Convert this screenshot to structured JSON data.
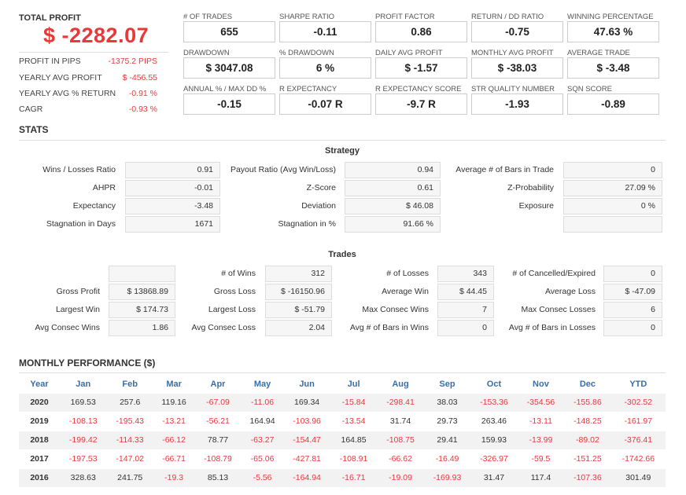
{
  "summary": {
    "total_profit_label": "TOTAL PROFIT",
    "total_profit_value": "$ -2282.07",
    "rows": [
      {
        "label": "PROFIT IN PIPS",
        "value": "-1375.2 PIPS"
      },
      {
        "label": "YEARLY AVG PROFIT",
        "value": "$ -456.55"
      },
      {
        "label": "YEARLY AVG % RETURN",
        "value": "-0.91 %"
      },
      {
        "label": "CAGR",
        "value": "-0.93 %"
      }
    ]
  },
  "metrics": [
    {
      "label": "# OF TRADES",
      "value": "655"
    },
    {
      "label": "SHARPE RATIO",
      "value": "-0.11"
    },
    {
      "label": "PROFIT FACTOR",
      "value": "0.86"
    },
    {
      "label": "RETURN / DD RATIO",
      "value": "-0.75"
    },
    {
      "label": "WINNING PERCENTAGE",
      "value": "47.63 %"
    },
    {
      "label": "DRAWDOWN",
      "value": "$ 3047.08"
    },
    {
      "label": "% DRAWDOWN",
      "value": "6 %"
    },
    {
      "label": "DAILY AVG PROFIT",
      "value": "$ -1.57"
    },
    {
      "label": "MONTHLY AVG PROFIT",
      "value": "$ -38.03"
    },
    {
      "label": "AVERAGE TRADE",
      "value": "$ -3.48"
    },
    {
      "label": "ANNUAL % / MAX DD %",
      "value": "-0.15"
    },
    {
      "label": "R EXPECTANCY",
      "value": "-0.07 R"
    },
    {
      "label": "R EXPECTANCY SCORE",
      "value": "-9.7 R"
    },
    {
      "label": "STR QUALITY NUMBER",
      "value": "-1.93"
    },
    {
      "label": "SQN SCORE",
      "value": "-0.89"
    }
  ],
  "stats": {
    "title": "STATS",
    "strategy_title": "Strategy",
    "strategy_rows": [
      [
        {
          "label": "Wins / Losses Ratio",
          "value": "0.91"
        },
        {
          "label": "Payout Ratio (Avg Win/Loss)",
          "value": "0.94"
        },
        {
          "label": "Average # of Bars in Trade",
          "value": "0"
        }
      ],
      [
        {
          "label": "AHPR",
          "value": "-0.01"
        },
        {
          "label": "Z-Score",
          "value": "0.61"
        },
        {
          "label": "Z-Probability",
          "value": "27.09 %"
        }
      ],
      [
        {
          "label": "Expectancy",
          "value": "-3.48"
        },
        {
          "label": "Deviation",
          "value": "$ 46.08"
        },
        {
          "label": "Exposure",
          "value": "0 %"
        }
      ],
      [
        {
          "label": "Stagnation in Days",
          "value": "1671"
        },
        {
          "label": "Stagnation in %",
          "value": "91.66 %"
        },
        {
          "label": "",
          "value": ""
        }
      ]
    ],
    "trades_title": "Trades",
    "trades_rows": [
      [
        {
          "label": "",
          "value": ""
        },
        {
          "label": "# of Wins",
          "value": "312"
        },
        {
          "label": "# of Losses",
          "value": "343"
        },
        {
          "label": "# of Cancelled/Expired",
          "value": "0"
        }
      ],
      [
        {
          "label": "Gross Profit",
          "value": "$ 13868.89"
        },
        {
          "label": "Gross Loss",
          "value": "$ -16150.96"
        },
        {
          "label": "Average Win",
          "value": "$ 44.45"
        },
        {
          "label": "Average Loss",
          "value": "$ -47.09"
        }
      ],
      [
        {
          "label": "Largest Win",
          "value": "$ 174.73"
        },
        {
          "label": "Largest Loss",
          "value": "$ -51.79"
        },
        {
          "label": "Max Consec Wins",
          "value": "7"
        },
        {
          "label": "Max Consec Losses",
          "value": "6"
        }
      ],
      [
        {
          "label": "Avg Consec Wins",
          "value": "1.86"
        },
        {
          "label": "Avg Consec Loss",
          "value": "2.04"
        },
        {
          "label": "Avg # of Bars in Wins",
          "value": "0"
        },
        {
          "label": "Avg # of Bars in Losses",
          "value": "0"
        }
      ]
    ]
  },
  "monthly": {
    "title": "MONTHLY PERFORMANCE ($)",
    "headers": [
      "Year",
      "Jan",
      "Feb",
      "Mar",
      "Apr",
      "May",
      "Jun",
      "Jul",
      "Aug",
      "Sep",
      "Oct",
      "Nov",
      "Dec",
      "YTD"
    ],
    "rows": [
      [
        "2020",
        "169.53",
        "257.6",
        "119.16",
        "-67.09",
        "-11.06",
        "169.34",
        "-15.84",
        "-298.41",
        "38.03",
        "-153.36",
        "-354.56",
        "-155.86",
        "-302.52"
      ],
      [
        "2019",
        "-108.13",
        "-195.43",
        "-13.21",
        "-56.21",
        "164.94",
        "-103.96",
        "-13.54",
        "31.74",
        "29.73",
        "263.46",
        "-13.11",
        "-148.25",
        "-161.97"
      ],
      [
        "2018",
        "-199.42",
        "-114.33",
        "-66.12",
        "78.77",
        "-63.27",
        "-154.47",
        "164.85",
        "-108.75",
        "29.41",
        "159.93",
        "-13.99",
        "-89.02",
        "-376.41"
      ],
      [
        "2017",
        "-197.53",
        "-147.02",
        "-66.71",
        "-108.79",
        "-65.06",
        "-427.81",
        "-108.91",
        "-66.62",
        "-16.49",
        "-326.97",
        "-59.5",
        "-151.25",
        "-1742.66"
      ],
      [
        "2016",
        "328.63",
        "241.75",
        "-19.3",
        "85.13",
        "-5.56",
        "-164.94",
        "-16.71",
        "-19.09",
        "-169.93",
        "31.47",
        "117.4",
        "-107.36",
        "301.49"
      ]
    ]
  }
}
